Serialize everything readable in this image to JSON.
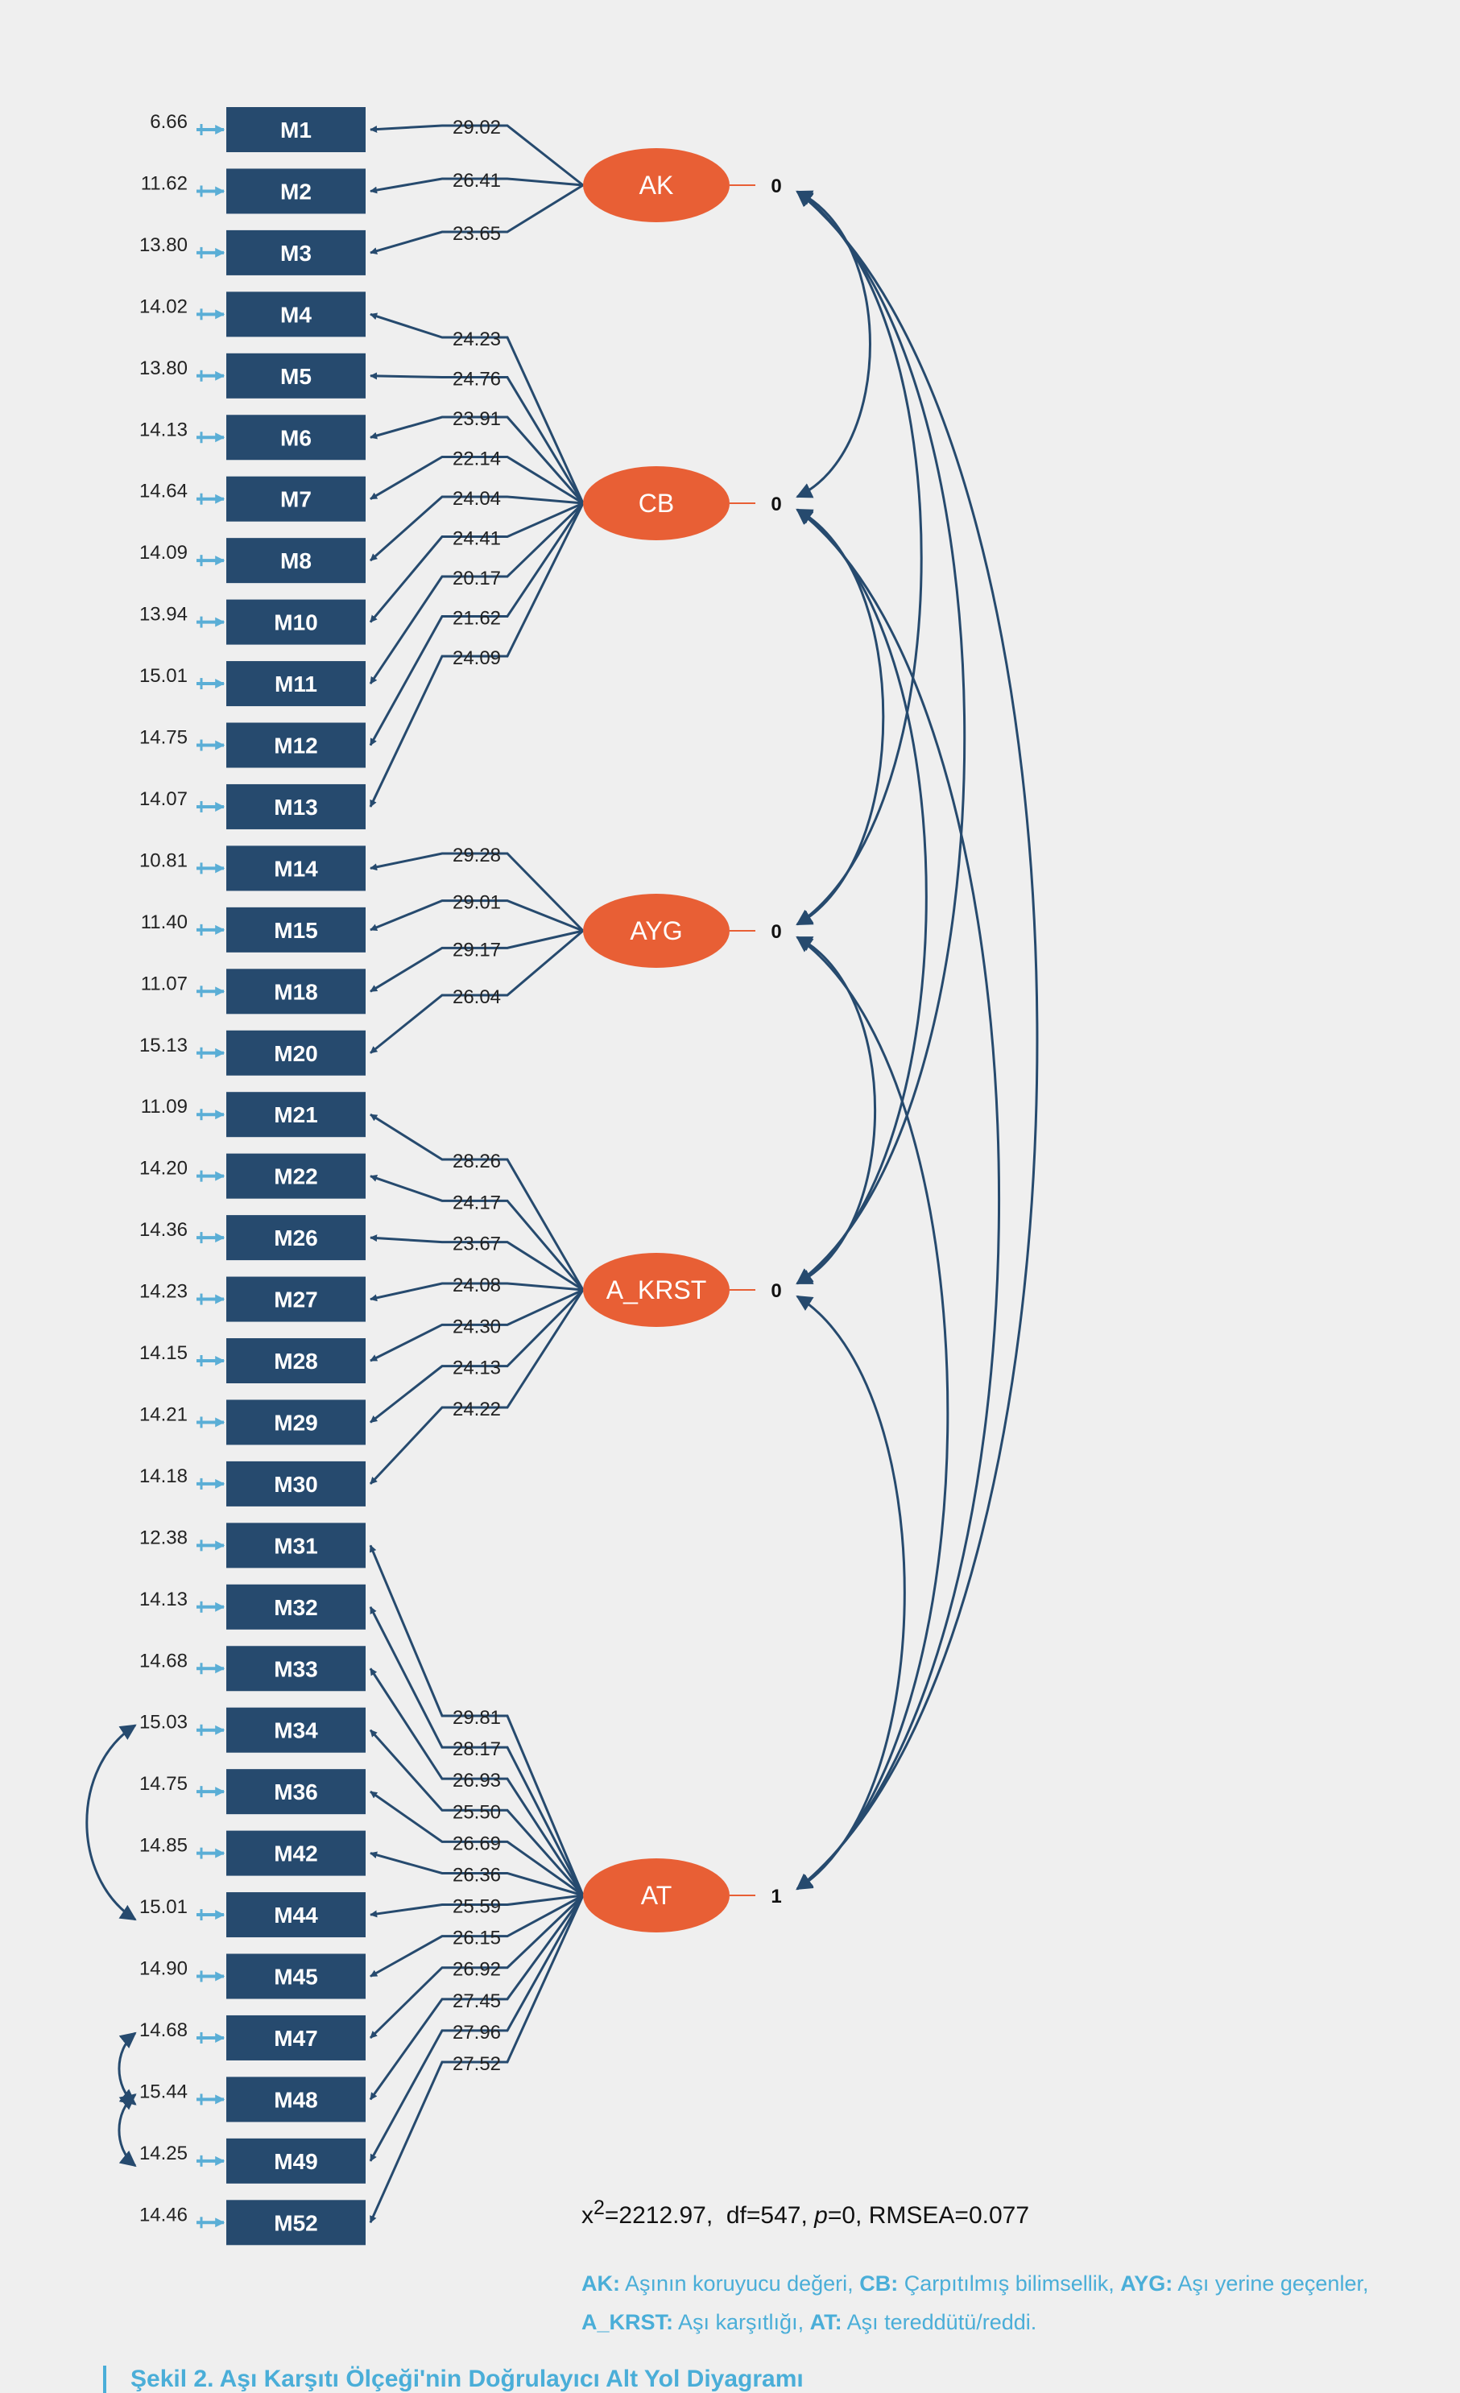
{
  "colors": {
    "background": "#efefef",
    "indicator_box": "#264a6e",
    "factor_ellipse": "#e85f35",
    "arrow": "#264a6e",
    "error_arrow": "#5aaed6",
    "legend_text": "#4aaed8"
  },
  "indicators": [
    {
      "label": "M1",
      "error": "6.66"
    },
    {
      "label": "M2",
      "error": "11.62"
    },
    {
      "label": "M3",
      "error": "13.80"
    },
    {
      "label": "M4",
      "error": "14.02"
    },
    {
      "label": "M5",
      "error": "13.80"
    },
    {
      "label": "M6",
      "error": "14.13"
    },
    {
      "label": "M7",
      "error": "14.64"
    },
    {
      "label": "M8",
      "error": "14.09"
    },
    {
      "label": "M10",
      "error": "13.94"
    },
    {
      "label": "M11",
      "error": "15.01"
    },
    {
      "label": "M12",
      "error": "14.75"
    },
    {
      "label": "M13",
      "error": "14.07"
    },
    {
      "label": "M14",
      "error": "10.81"
    },
    {
      "label": "M15",
      "error": "11.40"
    },
    {
      "label": "M18",
      "error": "11.07"
    },
    {
      "label": "M20",
      "error": "15.13"
    },
    {
      "label": "M21",
      "error": "11.09"
    },
    {
      "label": "M22",
      "error": "14.20"
    },
    {
      "label": "M26",
      "error": "14.36"
    },
    {
      "label": "M27",
      "error": "14.23"
    },
    {
      "label": "M28",
      "error": "14.15"
    },
    {
      "label": "M29",
      "error": "14.21"
    },
    {
      "label": "M30",
      "error": "14.18"
    },
    {
      "label": "M31",
      "error": "12.38"
    },
    {
      "label": "M32",
      "error": "14.13"
    },
    {
      "label": "M33",
      "error": "14.68"
    },
    {
      "label": "M34",
      "error": "15.03"
    },
    {
      "label": "M36",
      "error": "14.75"
    },
    {
      "label": "M42",
      "error": "14.85"
    },
    {
      "label": "M44",
      "error": "15.01"
    },
    {
      "label": "M45",
      "error": "14.90"
    },
    {
      "label": "M47",
      "error": "14.68"
    },
    {
      "label": "M48",
      "error": "15.44"
    },
    {
      "label": "M49",
      "error": "14.25"
    },
    {
      "label": "M52",
      "error": "14.46"
    }
  ],
  "factors": [
    {
      "label": "AK",
      "variance": "0",
      "indicators": [
        "M1",
        "M2",
        "M3"
      ],
      "loadings": [
        "29.02",
        "26.41",
        "23.65"
      ]
    },
    {
      "label": "CB",
      "variance": "0",
      "indicators": [
        "M4",
        "M5",
        "M6",
        "M7",
        "M8",
        "M10",
        "M11",
        "M12",
        "M13"
      ],
      "loadings": [
        "24.23",
        "24.76",
        "23.91",
        "22.14",
        "24.04",
        "24.41",
        "20.17",
        "21.62",
        "24.09"
      ]
    },
    {
      "label": "AYG",
      "variance": "0",
      "indicators": [
        "M14",
        "M15",
        "M18",
        "M20"
      ],
      "loadings": [
        "29.28",
        "29.01",
        "29.17",
        "26.04"
      ]
    },
    {
      "label": "A_KRST",
      "variance": "0",
      "indicators": [
        "M21",
        "M22",
        "M26",
        "M27",
        "M28",
        "M29",
        "M30"
      ],
      "loadings": [
        "28.26",
        "24.17",
        "23.67",
        "24.08",
        "24.30",
        "24.13",
        "24.22"
      ]
    },
    {
      "label": "AT",
      "variance": "1",
      "indicators": [
        "M31",
        "M32",
        "M33",
        "M34",
        "M36",
        "M42",
        "M44",
        "M45",
        "M47",
        "M48",
        "M49",
        "M52"
      ],
      "loadings": [
        "29.81",
        "28.17",
        "26.93",
        "25.50",
        "26.69",
        "26.36",
        "25.59",
        "26.15",
        "26.92",
        "27.45",
        "27.96",
        "27.52"
      ]
    }
  ],
  "factor_covariances": [
    [
      "AK",
      "CB"
    ],
    [
      "AK",
      "AYG"
    ],
    [
      "AK",
      "A_KRST"
    ],
    [
      "AK",
      "AT"
    ],
    [
      "CB",
      "AYG"
    ],
    [
      "CB",
      "A_KRST"
    ],
    [
      "CB",
      "AT"
    ],
    [
      "AYG",
      "A_KRST"
    ],
    [
      "AYG",
      "AT"
    ],
    [
      "A_KRST",
      "AT"
    ]
  ],
  "error_covariances": [
    [
      "M34",
      "M44"
    ],
    [
      "M47",
      "M48"
    ],
    [
      "M48",
      "M49"
    ]
  ],
  "fit": {
    "chi_prefix": "x",
    "chi_sup": "2",
    "chi_value": "=2212.97,",
    "df": "df=547,",
    "p_label": "p",
    "p_value": "=0,",
    "rmsea": "RMSEA=0.077"
  },
  "legend": {
    "items": [
      {
        "abbr": "AK:",
        "text": "Aşının koruyucu değeri,"
      },
      {
        "abbr": "CB:",
        "text": "Çarpıtılmış bilimsellik,"
      },
      {
        "abbr": "AYG:",
        "text": "Aşı yerine geçenler,"
      },
      {
        "abbr": "A_KRST:",
        "text": "Aşı karşıtlığı,"
      },
      {
        "abbr": "AT:",
        "text": "Aşı tereddütü/reddi."
      }
    ]
  },
  "caption": {
    "text": "Şekil 2. Aşı Karşıtı Ölçeği'nin Doğrulayıcı Alt Yol Diyagramı"
  }
}
